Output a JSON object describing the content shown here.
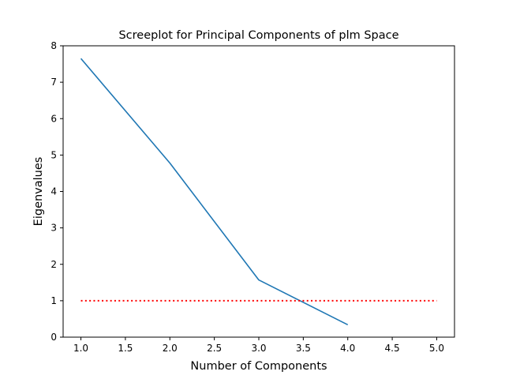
{
  "chart_data": {
    "type": "line",
    "title": "Screeplot for Principal Components of plm Space",
    "xlabel": "Number of Components",
    "ylabel": "Eigenvalues",
    "xlim": [
      0.8,
      5.2
    ],
    "ylim": [
      0,
      8
    ],
    "x_ticks": [
      "1.0",
      "1.5",
      "2.0",
      "2.5",
      "3.0",
      "3.5",
      "4.0",
      "4.5",
      "5.0"
    ],
    "y_ticks": [
      "0",
      "1",
      "2",
      "3",
      "4",
      "5",
      "6",
      "7",
      "8"
    ],
    "grid": false,
    "series": [
      {
        "x": [
          1,
          2,
          3,
          4
        ],
        "values": [
          7.65,
          4.78,
          1.57,
          0.34
        ],
        "color": "#1f77b4",
        "style": "solid"
      },
      {
        "x": [
          1,
          5
        ],
        "values": [
          1,
          1
        ],
        "color": "#ff0000",
        "style": "dotted"
      }
    ]
  }
}
